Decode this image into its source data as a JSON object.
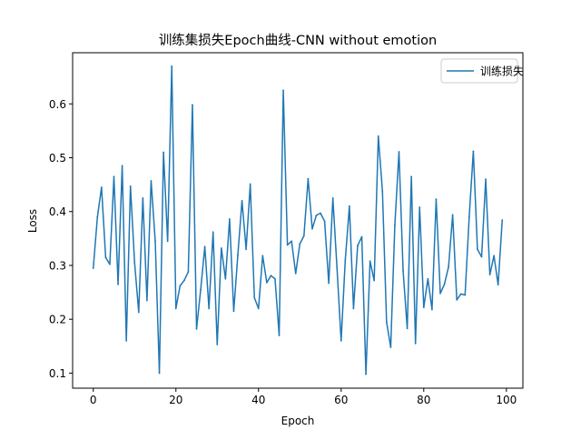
{
  "chart_data": {
    "type": "line",
    "title": "训练集损失Epoch曲线-CNN without emotion",
    "xlabel": "Epoch",
    "ylabel": "Loss",
    "xlim": [
      -5,
      104
    ],
    "ylim": [
      0.072,
      0.695
    ],
    "xticks": [
      0,
      20,
      40,
      60,
      80,
      100
    ],
    "xtick_labels": [
      "0",
      "20",
      "40",
      "60",
      "80",
      "100"
    ],
    "yticks": [
      0.1,
      0.2,
      0.3,
      0.4,
      0.5,
      0.6
    ],
    "ytick_labels": [
      "0.1",
      "0.2",
      "0.3",
      "0.4",
      "0.5",
      "0.6"
    ],
    "grid": false,
    "legend": {
      "position": "top-right"
    },
    "series": [
      {
        "name": "训练损失",
        "color": "#1f77b4",
        "x": [
          0,
          1,
          2,
          3,
          4,
          5,
          6,
          7,
          8,
          9,
          10,
          11,
          12,
          13,
          14,
          15,
          16,
          17,
          18,
          19,
          20,
          21,
          22,
          23,
          24,
          25,
          26,
          27,
          28,
          29,
          30,
          31,
          32,
          33,
          34,
          35,
          36,
          37,
          38,
          39,
          40,
          41,
          42,
          43,
          44,
          45,
          46,
          47,
          48,
          49,
          50,
          51,
          52,
          53,
          54,
          55,
          56,
          57,
          58,
          59,
          60,
          61,
          62,
          63,
          64,
          65,
          66,
          67,
          68,
          69,
          70,
          71,
          72,
          73,
          74,
          75,
          76,
          77,
          78,
          79,
          80,
          81,
          82,
          83,
          84,
          85,
          86,
          87,
          88,
          89,
          90,
          91,
          92,
          93,
          94,
          95,
          96,
          97,
          98,
          99
        ],
        "values": [
          0.295,
          0.39,
          0.445,
          0.315,
          0.302,
          0.465,
          0.265,
          0.485,
          0.16,
          0.447,
          0.305,
          0.213,
          0.425,
          0.235,
          0.457,
          0.345,
          0.1,
          0.51,
          0.345,
          0.67,
          0.22,
          0.262,
          0.272,
          0.288,
          0.598,
          0.182,
          0.255,
          0.335,
          0.22,
          0.362,
          0.153,
          0.332,
          0.275,
          0.386,
          0.215,
          0.32,
          0.42,
          0.33,
          0.451,
          0.24,
          0.22,
          0.318,
          0.268,
          0.281,
          0.275,
          0.17,
          0.625,
          0.338,
          0.345,
          0.285,
          0.34,
          0.355,
          0.461,
          0.368,
          0.393,
          0.397,
          0.382,
          0.267,
          0.425,
          0.295,
          0.16,
          0.31,
          0.41,
          0.22,
          0.337,
          0.353,
          0.098,
          0.308,
          0.272,
          0.54,
          0.438,
          0.195,
          0.148,
          0.375,
          0.511,
          0.29,
          0.183,
          0.465,
          0.155,
          0.408,
          0.222,
          0.275,
          0.218,
          0.423,
          0.248,
          0.265,
          0.297,
          0.394,
          0.236,
          0.247,
          0.245,
          0.39,
          0.512,
          0.33,
          0.316,
          0.46,
          0.283,
          0.318,
          0.264,
          0.384
        ]
      }
    ]
  }
}
